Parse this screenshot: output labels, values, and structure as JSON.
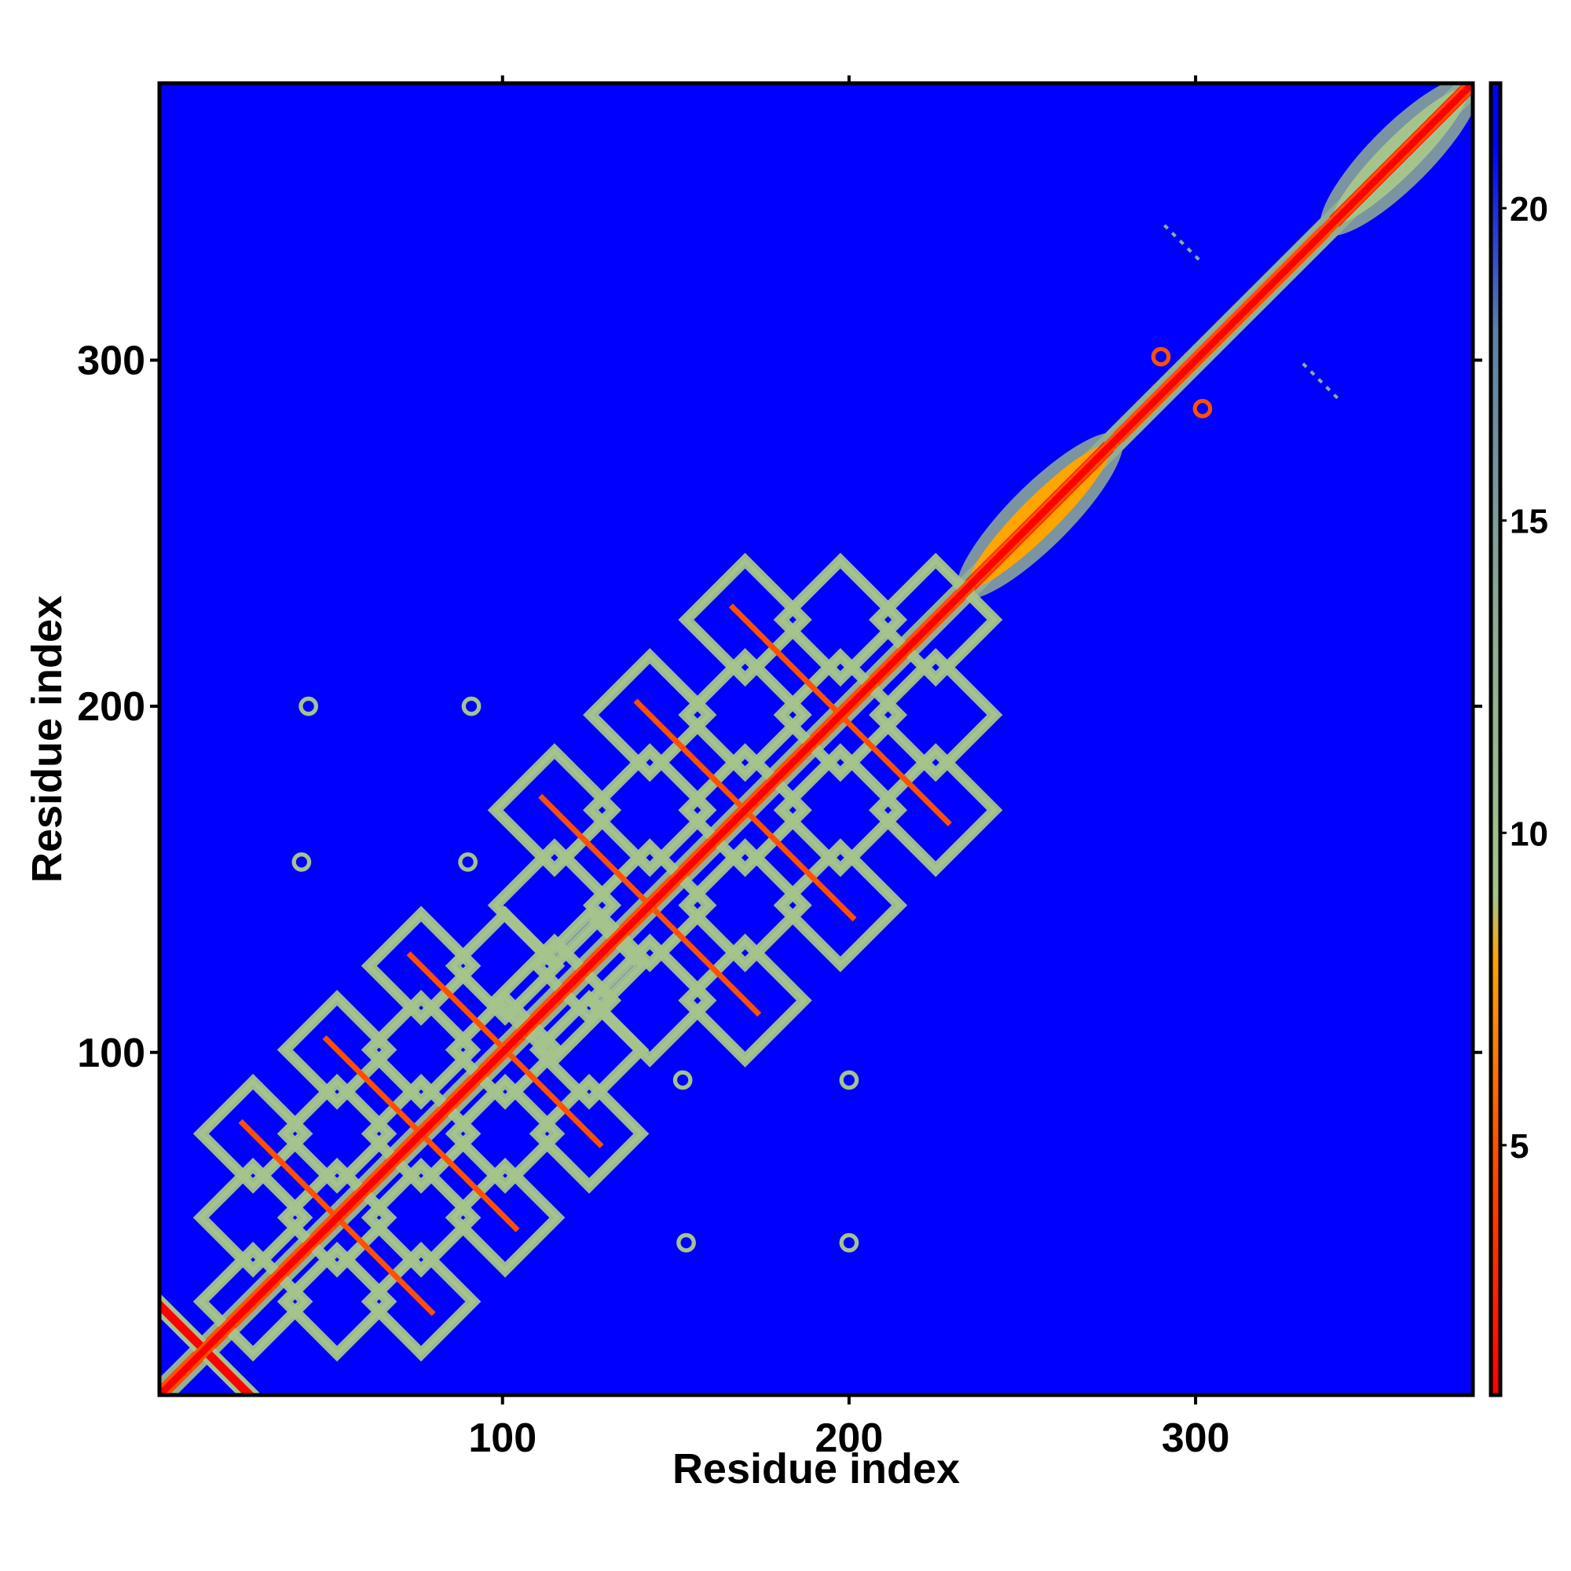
{
  "chart_data": {
    "type": "heatmap",
    "title": "",
    "xlabel": "Residue index",
    "ylabel": "Residue index",
    "xlim": [
      1,
      380
    ],
    "ylim": [
      1,
      380
    ],
    "x_ticks": [
      100,
      200,
      300
    ],
    "y_ticks": [
      100,
      200,
      300
    ],
    "colorbar": {
      "range": [
        1,
        22
      ],
      "ticks": [
        5,
        10,
        15,
        20
      ],
      "stops": [
        {
          "value": 1,
          "color": "#ff0000"
        },
        {
          "value": 5,
          "color": "#ff5000"
        },
        {
          "value": 8,
          "color": "#ffa500"
        },
        {
          "value": 9,
          "color": "#a4c48c"
        },
        {
          "value": 13,
          "color": "#8fae92"
        },
        {
          "value": 18,
          "color": "#5f80a8"
        },
        {
          "value": 21,
          "color": "#0000ff"
        }
      ],
      "background_color": "#0000ff"
    },
    "features": [
      {
        "kind": "diagonal",
        "from": 1,
        "to": 380,
        "value": 2
      },
      {
        "kind": "helix_band",
        "from": 235,
        "to": 275,
        "value": 9
      },
      {
        "kind": "helix_band",
        "from": 340,
        "to": 378,
        "value": 10
      },
      {
        "kind": "antidiagonal",
        "center": [
          14,
          14
        ],
        "half_length": 16,
        "value": 5
      },
      {
        "kind": "repeat_domain",
        "x_range": [
          28,
          125
        ],
        "y_range": [
          28,
          125
        ],
        "value": 7
      },
      {
        "kind": "repeat_domain",
        "x_range": [
          115,
          225
        ],
        "y_range": [
          115,
          225
        ],
        "value": 7
      },
      {
        "kind": "spot",
        "x": 290,
        "y": 301,
        "value": 6
      },
      {
        "kind": "spot",
        "x": 302,
        "y": 286,
        "value": 6
      },
      {
        "kind": "spot",
        "x": 44,
        "y": 200,
        "value": 12
      },
      {
        "kind": "spot",
        "x": 91,
        "y": 200,
        "value": 12
      },
      {
        "kind": "spot",
        "x": 42,
        "y": 155,
        "value": 12
      },
      {
        "kind": "spot",
        "x": 90,
        "y": 155,
        "value": 12
      },
      {
        "kind": "spot",
        "x": 152,
        "y": 92,
        "value": 12
      },
      {
        "kind": "spot",
        "x": 200,
        "y": 92,
        "value": 12
      },
      {
        "kind": "spot",
        "x": 153,
        "y": 45,
        "value": 12
      },
      {
        "kind": "spot",
        "x": 200,
        "y": 45,
        "value": 12
      },
      {
        "kind": "short_line",
        "x": 295,
        "y": 335,
        "value": 15
      },
      {
        "kind": "short_line",
        "x": 335,
        "y": 295,
        "value": 15
      }
    ]
  }
}
